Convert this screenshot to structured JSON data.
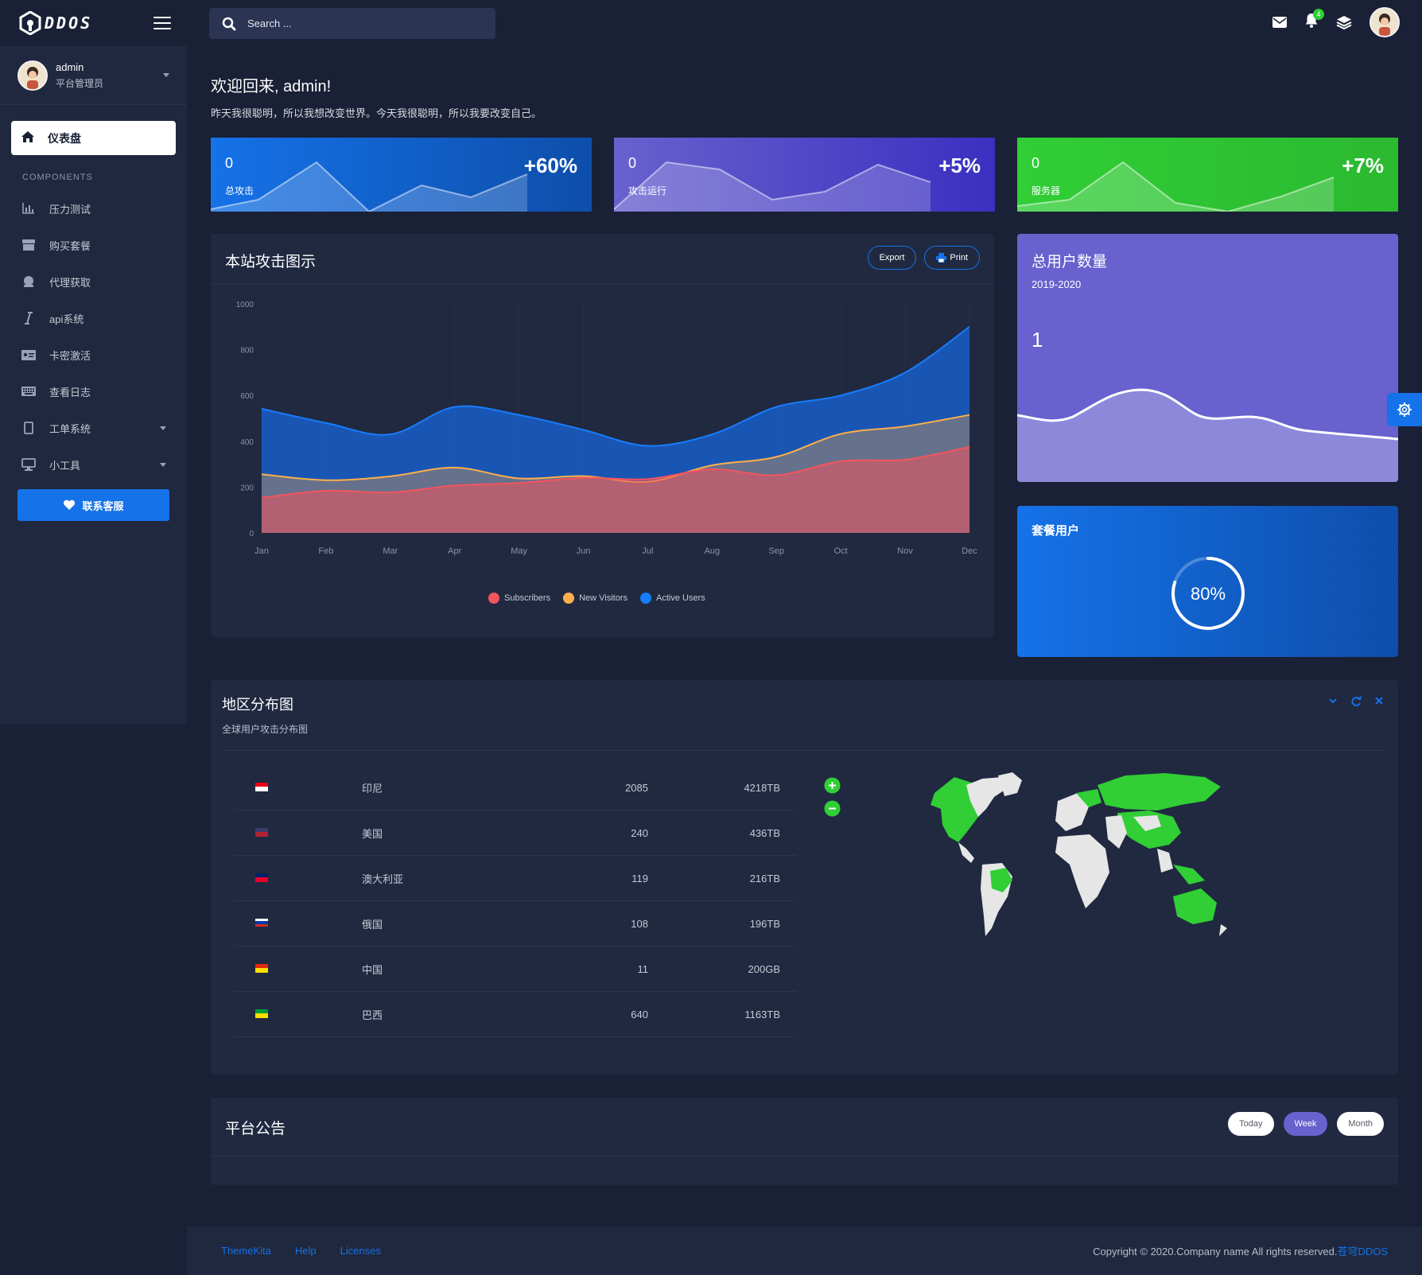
{
  "brand": {
    "name": "DDOS"
  },
  "user": {
    "name": "admin",
    "role": "平台管理员"
  },
  "nav": {
    "active": "仪表盘",
    "section": "COMPONENTS",
    "items": [
      {
        "label": "压力测试",
        "icon": "bar-chart-icon"
      },
      {
        "label": "购买套餐",
        "icon": "store-icon"
      },
      {
        "label": "代理获取",
        "icon": "coin-icon"
      },
      {
        "label": "api系统",
        "icon": "italic-i-icon"
      },
      {
        "label": "卡密激活",
        "icon": "id-card-icon"
      },
      {
        "label": "查看日志",
        "icon": "keyboard-icon"
      },
      {
        "label": "工单系统",
        "icon": "tablet-icon",
        "has_sub": true
      },
      {
        "label": "小工具",
        "icon": "desktop-icon",
        "has_sub": true
      }
    ],
    "contact": "联系客服"
  },
  "search": {
    "placeholder": "Search ..."
  },
  "topbar": {
    "notification_count": "4"
  },
  "welcome": {
    "title": "欢迎回来, admin!",
    "subtitle": "昨天我很聪明，所以我想改变世界。今天我很聪明，所以我要改变自己。"
  },
  "stats": [
    {
      "value": "0",
      "label": "总攻击",
      "percent": "+60%",
      "color": "#1572e8"
    },
    {
      "value": "0",
      "label": "攻击运行",
      "percent": "+5%",
      "color": "#6861ce"
    },
    {
      "value": "0",
      "label": "服务器",
      "percent": "+7%",
      "color": "#31ce36"
    }
  ],
  "attack_chart": {
    "title": "本站攻击图示",
    "export_label": "Export",
    "print_label": "Print"
  },
  "chart_data": {
    "type": "area",
    "categories": [
      "Jan",
      "Feb",
      "Mar",
      "Apr",
      "May",
      "Jun",
      "Jul",
      "Aug",
      "Sep",
      "Oct",
      "Nov",
      "Dec"
    ],
    "yticks": [
      "0",
      "200",
      "400",
      "600",
      "800",
      "1000"
    ],
    "ylim": [
      0,
      1000
    ],
    "series": [
      {
        "name": "Subscribers",
        "color": "#f3545d",
        "values": [
          154,
          184,
          177,
          207,
          218,
          240,
          235,
          278,
          252,
          313,
          320,
          375
        ]
      },
      {
        "name": "New Visitors",
        "color": "#fdaf4b",
        "values": [
          256,
          230,
          247,
          285,
          238,
          248,
          223,
          295,
          332,
          432,
          465,
          515
        ]
      },
      {
        "name": "Active Users",
        "color": "#177dff",
        "values": [
          542,
          480,
          430,
          550,
          515,
          450,
          380,
          430,
          550,
          600,
          700,
          900
        ]
      }
    ]
  },
  "total_users": {
    "title": "总用户数量",
    "period": "2019-2020",
    "value": "1"
  },
  "package_users": {
    "title": "套餐用户",
    "progress_text": "80%",
    "progress": 0.8
  },
  "region": {
    "title": "地区分布图",
    "subtitle": "全球用户攻击分布图",
    "rows": [
      {
        "country": "印尼",
        "count": "2085",
        "traffic": "4218TB"
      },
      {
        "country": "美国",
        "count": "240",
        "traffic": "436TB"
      },
      {
        "country": "澳大利亚",
        "count": "119",
        "traffic": "216TB"
      },
      {
        "country": "俄国",
        "count": "108",
        "traffic": "196TB"
      },
      {
        "country": "中国",
        "count": "11",
        "traffic": "200GB"
      },
      {
        "country": "巴西",
        "count": "640",
        "traffic": "1163TB"
      }
    ]
  },
  "notice": {
    "title": "平台公告",
    "tabs": [
      "Today",
      "Week",
      "Month"
    ],
    "active_tab": "Week"
  },
  "footer": {
    "links": [
      "ThemeKita",
      "Help",
      "Licenses"
    ],
    "copyright": "Copyright © 2020.Company name All rights reserved.",
    "brand_link": "苍穹DDOS"
  }
}
